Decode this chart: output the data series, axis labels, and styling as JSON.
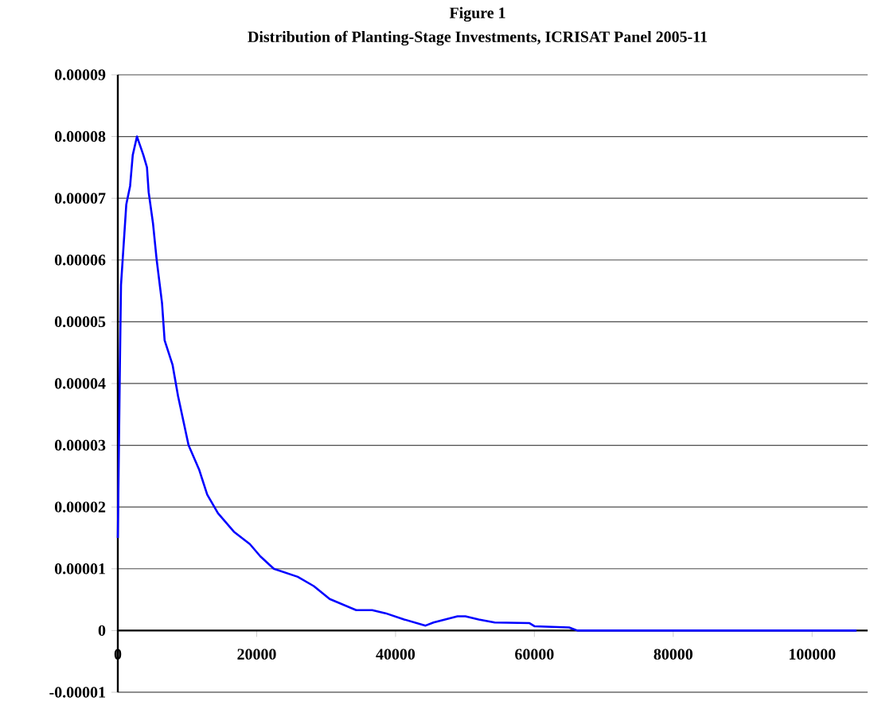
{
  "chart_data": {
    "type": "line",
    "title": "Figure 1",
    "subtitle": "Distribution of Planting-Stage Investments, ICRISAT Panel 2005-11",
    "x": [
      0,
      300,
      460,
      1220,
      1770,
      2150,
      2760,
      3680,
      4200,
      4440,
      5060,
      5600,
      5820,
      6370,
      6740,
      7890,
      8670,
      10190,
      11730,
      12880,
      14420,
      16720,
      19020,
      20540,
      22470,
      25920,
      28220,
      30520,
      34340,
      36640,
      38570,
      41240,
      44320,
      45470,
      48920,
      50070,
      51980,
      54280,
      59300,
      60000,
      65000,
      66200,
      106400
    ],
    "series": [
      {
        "color": "#0000ff",
        "values": [
          1.5e-05,
          4.3e-05,
          5.6e-05,
          6.9e-05,
          7.2e-05,
          7.7e-05,
          8e-05,
          7.7e-05,
          7.5e-05,
          7.1e-05,
          6.6e-05,
          6e-05,
          5.8e-05,
          5.3e-05,
          4.7e-05,
          4.3e-05,
          3.8e-05,
          3e-05,
          2.6e-05,
          2.2e-05,
          1.9e-05,
          1.6e-05,
          1.4e-05,
          1.2e-05,
          1e-05,
          8.7e-06,
          7.2e-06,
          5.1e-06,
          3.3e-06,
          3.3e-06,
          2.8e-06,
          1.8e-06,
          8e-07,
          1.3e-06,
          2.3e-06,
          2.3e-06,
          1.8e-06,
          1.3e-06,
          1.2e-06,
          7e-07,
          5e-07,
          0,
          0
        ]
      }
    ],
    "xlim": [
      0,
      108000
    ],
    "xticks": [
      0,
      20000,
      40000,
      60000,
      80000,
      100000
    ],
    "ylim": [
      -1e-05,
      9e-05
    ],
    "yticks": [
      {
        "value": -1e-05,
        "label": "-0.00001"
      },
      {
        "value": 0,
        "label": "0"
      },
      {
        "value": 1e-05,
        "label": "0.00001"
      },
      {
        "value": 2e-05,
        "label": "0.00002"
      },
      {
        "value": 3e-05,
        "label": "0.00003"
      },
      {
        "value": 4e-05,
        "label": "0.00004"
      },
      {
        "value": 5e-05,
        "label": "0.00005"
      },
      {
        "value": 6e-05,
        "label": "0.00006"
      },
      {
        "value": 7e-05,
        "label": "0.00007"
      },
      {
        "value": 8e-05,
        "label": "0.00008"
      },
      {
        "value": 9e-05,
        "label": "0.00009"
      }
    ],
    "grid": "y",
    "marker": "none",
    "line_style": "solid"
  }
}
